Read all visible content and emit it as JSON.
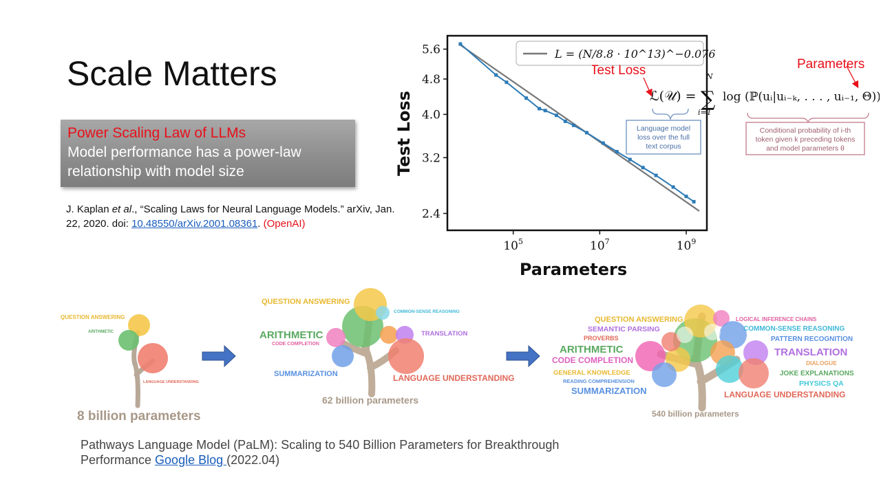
{
  "slide": {
    "title": "Scale Matters",
    "box": {
      "highlight": "Power Scaling Law of LLMs",
      "text": "Model performance has a power-law relationship with model size"
    },
    "citation": {
      "authors": "J. Kaplan ",
      "etal": "et al",
      "rest": "., “Scaling Laws for Neural Language Models.” arXiv, Jan. 22, 2020. doi: ",
      "doi": "10.48550/arXiv.2001.08361",
      "after": ". ",
      "org": "(OpenAI)"
    },
    "reference": {
      "text": "Pathways Language Model (PaLM): Scaling to 540 Billion Parameters for Breakthrough Performance ",
      "link": "Google Blog ",
      "date": "(2022.04)"
    }
  },
  "chart_data": {
    "type": "line",
    "xlabel": "Parameters",
    "ylabel": "Test Loss",
    "xscale": "log",
    "yscale": "log",
    "xlim": [
      3000.0,
      3000000000.0
    ],
    "ylim": [
      2.2,
      6.0
    ],
    "xticks": [
      "10^5",
      "10^7",
      "10^9"
    ],
    "yticks": [
      5.6,
      4.8,
      4.0,
      3.2,
      2.4
    ],
    "legend": "L = (N/8.8 · 10^13)^−0.076",
    "legend_position": "top-right",
    "series": [
      {
        "name": "data",
        "x": [
          6000.0,
          40000.0,
          70000.0,
          200000.0,
          400000.0,
          550000.0,
          1000000.0,
          1600000.0,
          2500000.0,
          5000000.0,
          12000000.0,
          25000000.0,
          50000000.0,
          100000000.0,
          200000000.0,
          500000000.0,
          1000000000.0,
          1500000000.0
        ],
        "y": [
          5.75,
          4.9,
          4.72,
          4.35,
          4.12,
          4.08,
          3.98,
          3.86,
          3.78,
          3.64,
          3.45,
          3.3,
          3.17,
          3.04,
          2.92,
          2.75,
          2.62,
          2.55
        ]
      }
    ],
    "fit_line": {
      "x": [
        6000.0,
        2000000000.0
      ],
      "y": [
        5.72,
        2.43
      ]
    }
  },
  "formula": {
    "test_loss": "Test Loss",
    "parameters": "Parameters",
    "lhs": "ℒ(𝒰) =",
    "sum_top": "N",
    "sum_bottom": "i=1",
    "rhs": "log (ℙ(uᵢ|uᵢ₋ₖ, . . . , uᵢ₋₁, Θ))",
    "box1": [
      "Language model",
      "loss over the full",
      "text corpus"
    ],
    "box2": [
      "Conditional probability of i-th",
      "token given k preceding tokens",
      "and model parameters θ"
    ]
  },
  "palm": {
    "tree1": {
      "caption": "8 billion parameters",
      "labels": [
        "QUESTION ANSWERING",
        "ARITHMETIC",
        "LANGUAGE UNDERSTANDING"
      ]
    },
    "tree2": {
      "caption": "62 billion parameters",
      "labels": [
        "QUESTION ANSWERING",
        "COMMON-SENSE REASONING",
        "ARITHMETIC",
        "CODE COMPLETION",
        "TRANSLATION",
        "SUMMARIZATION",
        "LANGUAGE UNDERSTANDING"
      ]
    },
    "tree3": {
      "caption": "540 billion parameters",
      "labels": [
        "QUESTION ANSWERING",
        "LOGICAL INFERENCE CHAINS",
        "SEMANTIC PARSING",
        "COMMON-SENSE REASONING",
        "PROVERBS",
        "PATTERN RECOGNITION",
        "ARITHMETIC",
        "TRANSLATION",
        "CODE COMPLETION",
        "DIALOGUE",
        "GENERAL KNOWLEDGE",
        "JOKE EXPLANATIONS",
        "READING COMPREHENSION",
        "PHYSICS QA",
        "SUMMARIZATION",
        "LANGUAGE UNDERSTANDING"
      ]
    }
  }
}
